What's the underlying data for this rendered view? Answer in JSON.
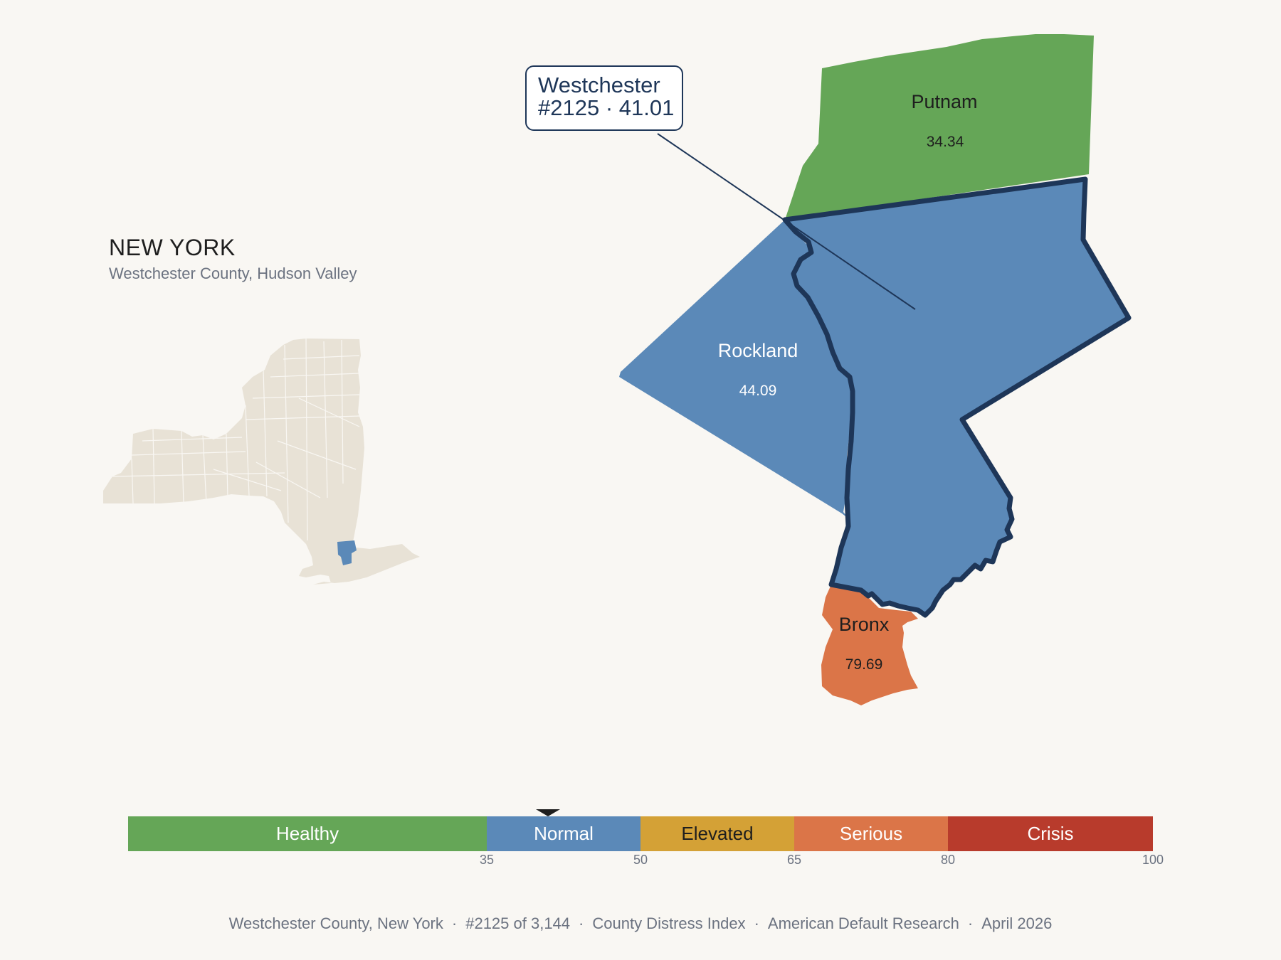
{
  "header": {
    "state": "NEW YORK",
    "subtitle": "Westchester County, Hudson Valley"
  },
  "colors": {
    "background": "#f9f7f3",
    "healthy": "#65a657",
    "normal": "#5b89b8",
    "elevated": "#d4a136",
    "serious": "#db7548",
    "crisis": "#b83b2c",
    "highlight_outline": "#1e3658",
    "inset_fill": "#e8e2d6"
  },
  "map": {
    "counties": [
      {
        "name": "Putnam",
        "value": "34.34",
        "category": "Healthy"
      },
      {
        "name": "Westchester",
        "value": "41.01",
        "category": "Normal",
        "selected": true
      },
      {
        "name": "Rockland",
        "value": "44.09",
        "category": "Normal"
      },
      {
        "name": "Bronx",
        "value": "79.69",
        "category": "Serious"
      }
    ],
    "callout": {
      "line1": "Westchester",
      "line2": "#2125 · 41.01"
    }
  },
  "legend": {
    "segments": [
      {
        "label": "Healthy",
        "from": 0,
        "to": 35
      },
      {
        "label": "Normal",
        "from": 35,
        "to": 50
      },
      {
        "label": "Elevated",
        "from": 50,
        "to": 65
      },
      {
        "label": "Serious",
        "from": 65,
        "to": 80
      },
      {
        "label": "Crisis",
        "from": 80,
        "to": 100
      }
    ],
    "ticks": [
      "35",
      "50",
      "65",
      "80",
      "100"
    ],
    "marker_value": 41.01
  },
  "footer": {
    "county": "Westchester County, New York",
    "rank": "#2125 of 3,144",
    "index": "County Distress Index",
    "source": "American Default Research",
    "date": "April 2026"
  }
}
